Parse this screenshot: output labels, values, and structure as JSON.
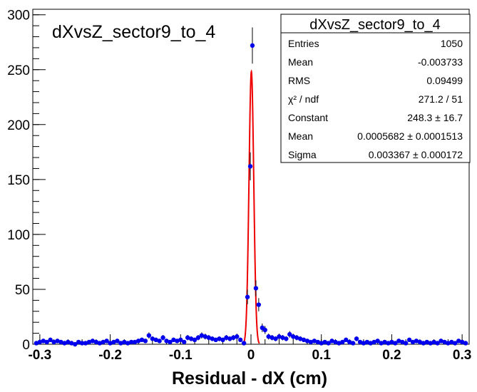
{
  "chart_data": {
    "type": "scatter",
    "title": "dXvsZ_sector9_to_4",
    "xlabel": "Residual - dX (cm)",
    "ylabel": "",
    "xlim": [
      -0.31,
      0.31
    ],
    "ylim": [
      0,
      305
    ],
    "x_ticks": [
      -0.3,
      -0.2,
      -0.1,
      0,
      0.1,
      0.2,
      0.3
    ],
    "x_tick_labels": [
      "-0.3",
      "-0.2",
      "-0.1",
      "0",
      "0.1",
      "0.2",
      "0.3"
    ],
    "y_ticks": [
      0,
      50,
      100,
      150,
      200,
      250,
      300
    ],
    "y_tick_labels": [
      "0",
      "50",
      "100",
      "150",
      "200",
      "250",
      "300"
    ],
    "grid": false,
    "legend_position": "top-right",
    "stats": {
      "title": "dXvsZ_sector9_to_4",
      "rows": [
        {
          "label": "Entries",
          "value": "1050"
        },
        {
          "label": "Mean",
          "value": "-0.003733"
        },
        {
          "label": "RMS",
          "value": "0.09499"
        },
        {
          "label": "χ² / ndf",
          "value": "271.2 / 51"
        },
        {
          "label": "Constant",
          "value": "248.3 ± 16.7"
        },
        {
          "label": "Mean",
          "value": "0.0005682 ± 0.0001513"
        },
        {
          "label": "Sigma",
          "value": "0.003367 ± 0.000172"
        }
      ]
    },
    "fit": {
      "type": "gaussian",
      "constant": 248.3,
      "mean": 0.0005682,
      "sigma": 0.003367,
      "x_range": [
        -0.012,
        0.012
      ]
    },
    "series": [
      {
        "color": "#0000ee",
        "points": [
          [
            -0.305,
            1
          ],
          [
            -0.3,
            2
          ],
          [
            -0.295,
            3
          ],
          [
            -0.29,
            2
          ],
          [
            -0.285,
            4
          ],
          [
            -0.28,
            2
          ],
          [
            -0.275,
            3
          ],
          [
            -0.27,
            2
          ],
          [
            -0.265,
            1
          ],
          [
            -0.26,
            2
          ],
          [
            -0.255,
            1
          ],
          [
            -0.25,
            0
          ],
          [
            -0.245,
            2
          ],
          [
            -0.24,
            1
          ],
          [
            -0.235,
            1
          ],
          [
            -0.23,
            2
          ],
          [
            -0.225,
            3
          ],
          [
            -0.22,
            2
          ],
          [
            -0.215,
            1
          ],
          [
            -0.21,
            2
          ],
          [
            -0.205,
            3
          ],
          [
            -0.2,
            1
          ],
          [
            -0.195,
            2
          ],
          [
            -0.19,
            3
          ],
          [
            -0.185,
            1
          ],
          [
            -0.18,
            2
          ],
          [
            -0.175,
            1
          ],
          [
            -0.17,
            2
          ],
          [
            -0.165,
            2
          ],
          [
            -0.16,
            3
          ],
          [
            -0.155,
            4
          ],
          [
            -0.15,
            3
          ],
          [
            -0.145,
            8
          ],
          [
            -0.14,
            5
          ],
          [
            -0.135,
            4
          ],
          [
            -0.13,
            3
          ],
          [
            -0.125,
            6
          ],
          [
            -0.12,
            3
          ],
          [
            -0.115,
            2
          ],
          [
            -0.11,
            4
          ],
          [
            -0.105,
            3
          ],
          [
            -0.1,
            4
          ],
          [
            -0.095,
            2
          ],
          [
            -0.09,
            6
          ],
          [
            -0.085,
            5
          ],
          [
            -0.08,
            4
          ],
          [
            -0.075,
            6
          ],
          [
            -0.07,
            8
          ],
          [
            -0.065,
            7
          ],
          [
            -0.06,
            6
          ],
          [
            -0.055,
            5
          ],
          [
            -0.05,
            4
          ],
          [
            -0.045,
            5
          ],
          [
            -0.04,
            4
          ],
          [
            -0.035,
            6
          ],
          [
            -0.03,
            5
          ],
          [
            -0.025,
            6
          ],
          [
            -0.02,
            7
          ],
          [
            -0.015,
            4
          ],
          [
            -0.01,
            1
          ],
          [
            -0.005,
            43
          ],
          [
            -0.001,
            162
          ],
          [
            0.002,
            272
          ],
          [
            0.007,
            51
          ],
          [
            0.011,
            36
          ],
          [
            0.016,
            15
          ],
          [
            0.02,
            13
          ],
          [
            0.025,
            7
          ],
          [
            0.03,
            6
          ],
          [
            0.035,
            5
          ],
          [
            0.04,
            7
          ],
          [
            0.045,
            6
          ],
          [
            0.05,
            5
          ],
          [
            0.055,
            9
          ],
          [
            0.06,
            7
          ],
          [
            0.065,
            6
          ],
          [
            0.07,
            5
          ],
          [
            0.075,
            4
          ],
          [
            0.08,
            3
          ],
          [
            0.085,
            2
          ],
          [
            0.09,
            3
          ],
          [
            0.095,
            2
          ],
          [
            0.1,
            1
          ],
          [
            0.105,
            2
          ],
          [
            0.11,
            1
          ],
          [
            0.115,
            3
          ],
          [
            0.12,
            2
          ],
          [
            0.125,
            1
          ],
          [
            0.13,
            2
          ],
          [
            0.135,
            4
          ],
          [
            0.14,
            2
          ],
          [
            0.145,
            1
          ],
          [
            0.15,
            5
          ],
          [
            0.155,
            2
          ],
          [
            0.16,
            1
          ],
          [
            0.165,
            2
          ],
          [
            0.17,
            1
          ],
          [
            0.175,
            2
          ],
          [
            0.18,
            3
          ],
          [
            0.185,
            1
          ],
          [
            0.19,
            2
          ],
          [
            0.195,
            1
          ],
          [
            0.2,
            2
          ],
          [
            0.205,
            1
          ],
          [
            0.21,
            3
          ],
          [
            0.215,
            2
          ],
          [
            0.22,
            1
          ],
          [
            0.225,
            4
          ],
          [
            0.23,
            2
          ],
          [
            0.235,
            3
          ],
          [
            0.24,
            2
          ],
          [
            0.245,
            1
          ],
          [
            0.25,
            2
          ],
          [
            0.255,
            1
          ],
          [
            0.26,
            2
          ],
          [
            0.265,
            1
          ],
          [
            0.27,
            3
          ],
          [
            0.275,
            2
          ],
          [
            0.28,
            1
          ],
          [
            0.285,
            2
          ],
          [
            0.29,
            1
          ],
          [
            0.295,
            3
          ],
          [
            0.3,
            2
          ],
          [
            0.305,
            1
          ]
        ]
      }
    ]
  }
}
